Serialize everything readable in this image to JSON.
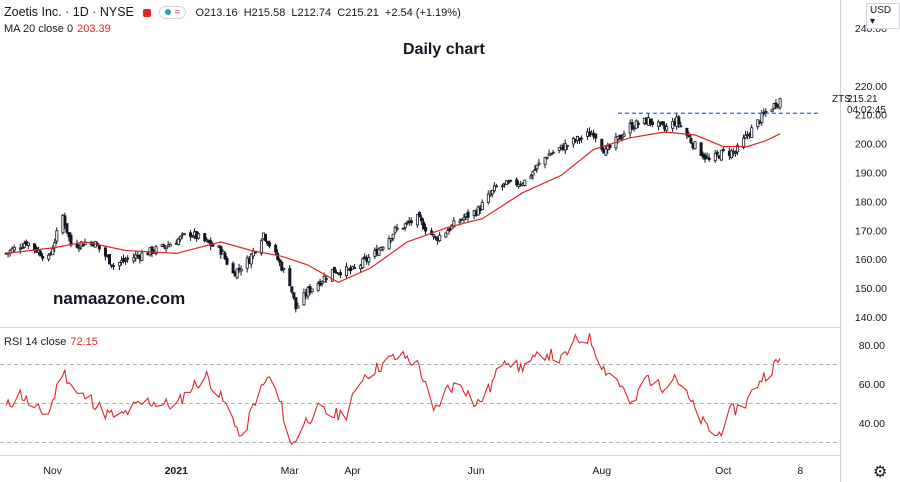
{
  "header": {
    "symbol": "Zoetis Inc. · 1D · NYSE",
    "open_label": "O",
    "open": "213.16",
    "high_label": "H",
    "high": "215.58",
    "low_label": "L",
    "low": "212.74",
    "close_label": "C",
    "close": "215.21",
    "change": "+2.54 (+1.19%)"
  },
  "indicators": {
    "ma_label": "MA 20 close 0",
    "ma_value": "203.39",
    "rsi_label": "RSI 14 close",
    "rsi_value": "72.15"
  },
  "annotations": {
    "title": "Daily chart",
    "watermark": "namaazone.com",
    "ticker_tag": "ZTS"
  },
  "price_scale": {
    "currency": "USD",
    "last_price": "215.21",
    "countdown": "04:02:45"
  },
  "colors": {
    "up": "#131722",
    "down": "#131722",
    "ma": "#e0252b",
    "rsi": "#e0252b",
    "resistance": "#2962ff"
  },
  "chart_data": {
    "type": "candlestick",
    "title": "Daily chart",
    "y_ticks": [
      140,
      150,
      160,
      170,
      180,
      190,
      200,
      210,
      220,
      240
    ],
    "ylim": [
      137,
      252
    ],
    "x_ticks": [
      "Nov",
      "2021",
      "Mar",
      "Apr",
      "Jun",
      "Aug",
      "Oct",
      "8"
    ],
    "close_path": [
      {
        "date": "2020-10-12",
        "v": 162
      },
      {
        "date": "2020-10-22",
        "v": 166
      },
      {
        "date": "2020-11-02",
        "v": 160
      },
      {
        "date": "2020-11-09",
        "v": 175
      },
      {
        "date": "2020-11-13",
        "v": 165
      },
      {
        "date": "2020-11-24",
        "v": 166
      },
      {
        "date": "2020-12-04",
        "v": 158
      },
      {
        "date": "2020-12-15",
        "v": 161
      },
      {
        "date": "2020-12-28",
        "v": 164
      },
      {
        "date": "2021-01-11",
        "v": 169
      },
      {
        "date": "2021-01-26",
        "v": 163
      },
      {
        "date": "2021-02-01",
        "v": 155
      },
      {
        "date": "2021-02-09",
        "v": 160
      },
      {
        "date": "2021-02-16",
        "v": 169
      },
      {
        "date": "2021-02-23",
        "v": 160
      },
      {
        "date": "2021-03-01",
        "v": 152
      },
      {
        "date": "2021-03-04",
        "v": 143
      },
      {
        "date": "2021-03-10",
        "v": 149
      },
      {
        "date": "2021-03-22",
        "v": 156
      },
      {
        "date": "2021-04-01",
        "v": 156
      },
      {
        "date": "2021-04-12",
        "v": 162
      },
      {
        "date": "2021-04-22",
        "v": 170
      },
      {
        "date": "2021-05-03",
        "v": 174
      },
      {
        "date": "2021-05-12",
        "v": 167
      },
      {
        "date": "2021-05-25",
        "v": 174
      },
      {
        "date": "2021-06-02",
        "v": 177
      },
      {
        "date": "2021-06-11",
        "v": 185
      },
      {
        "date": "2021-06-25",
        "v": 187
      },
      {
        "date": "2021-07-06",
        "v": 196
      },
      {
        "date": "2021-07-20",
        "v": 201
      },
      {
        "date": "2021-07-29",
        "v": 204
      },
      {
        "date": "2021-08-04",
        "v": 197
      },
      {
        "date": "2021-08-16",
        "v": 206
      },
      {
        "date": "2021-08-25",
        "v": 208
      },
      {
        "date": "2021-09-02",
        "v": 205
      },
      {
        "date": "2021-09-08",
        "v": 208
      },
      {
        "date": "2021-09-16",
        "v": 200
      },
      {
        "date": "2021-09-24",
        "v": 194
      },
      {
        "date": "2021-10-01",
        "v": 197
      },
      {
        "date": "2021-10-07",
        "v": 197
      },
      {
        "date": "2021-10-13",
        "v": 203
      },
      {
        "date": "2021-10-21",
        "v": 210
      },
      {
        "date": "2021-10-29",
        "v": 215.21
      }
    ],
    "ma20": [
      {
        "date": "2020-10-12",
        "v": 162
      },
      {
        "date": "2020-11-05",
        "v": 164
      },
      {
        "date": "2020-11-20",
        "v": 166
      },
      {
        "date": "2020-12-10",
        "v": 163
      },
      {
        "date": "2021-01-04",
        "v": 162
      },
      {
        "date": "2021-01-26",
        "v": 166
      },
      {
        "date": "2021-02-10",
        "v": 163
      },
      {
        "date": "2021-02-25",
        "v": 161
      },
      {
        "date": "2021-03-10",
        "v": 158
      },
      {
        "date": "2021-03-25",
        "v": 152
      },
      {
        "date": "2021-04-10",
        "v": 157
      },
      {
        "date": "2021-04-28",
        "v": 166
      },
      {
        "date": "2021-05-18",
        "v": 171
      },
      {
        "date": "2021-06-04",
        "v": 174
      },
      {
        "date": "2021-06-24",
        "v": 183
      },
      {
        "date": "2021-07-13",
        "v": 189
      },
      {
        "date": "2021-07-29",
        "v": 198
      },
      {
        "date": "2021-08-16",
        "v": 202
      },
      {
        "date": "2021-09-02",
        "v": 204
      },
      {
        "date": "2021-09-17",
        "v": 203
      },
      {
        "date": "2021-10-01",
        "v": 199
      },
      {
        "date": "2021-10-13",
        "v": 199
      },
      {
        "date": "2021-10-22",
        "v": 201
      },
      {
        "date": "2021-10-29",
        "v": 203.39
      }
    ],
    "resistance": {
      "value": 210.5,
      "from": "2021-08-10",
      "to": "2021-11-15"
    },
    "rsi": {
      "ylim": [
        25,
        87
      ],
      "y_ticks": [
        40,
        60,
        80
      ],
      "levels": [
        70,
        50,
        30
      ],
      "series": [
        {
          "date": "2020-10-12",
          "v": 48
        },
        {
          "date": "2020-10-19",
          "v": 55
        },
        {
          "date": "2020-10-26",
          "v": 47
        },
        {
          "date": "2020-11-02",
          "v": 45
        },
        {
          "date": "2020-11-09",
          "v": 67
        },
        {
          "date": "2020-11-16",
          "v": 55
        },
        {
          "date": "2020-11-23",
          "v": 52
        },
        {
          "date": "2020-11-30",
          "v": 45
        },
        {
          "date": "2020-12-07",
          "v": 43
        },
        {
          "date": "2020-12-14",
          "v": 48
        },
        {
          "date": "2020-12-21",
          "v": 51
        },
        {
          "date": "2021-01-04",
          "v": 49
        },
        {
          "date": "2021-01-11",
          "v": 58
        },
        {
          "date": "2021-01-19",
          "v": 64
        },
        {
          "date": "2021-01-26",
          "v": 53
        },
        {
          "date": "2021-02-02",
          "v": 41
        },
        {
          "date": "2021-02-05",
          "v": 30
        },
        {
          "date": "2021-02-12",
          "v": 52
        },
        {
          "date": "2021-02-19",
          "v": 64
        },
        {
          "date": "2021-02-25",
          "v": 48
        },
        {
          "date": "2021-03-02",
          "v": 28
        },
        {
          "date": "2021-03-08",
          "v": 40
        },
        {
          "date": "2021-03-15",
          "v": 47
        },
        {
          "date": "2021-03-22",
          "v": 44
        },
        {
          "date": "2021-03-29",
          "v": 45
        },
        {
          "date": "2021-04-06",
          "v": 64
        },
        {
          "date": "2021-04-13",
          "v": 68
        },
        {
          "date": "2021-04-20",
          "v": 73
        },
        {
          "date": "2021-04-27",
          "v": 74
        },
        {
          "date": "2021-05-04",
          "v": 69
        },
        {
          "date": "2021-05-11",
          "v": 45
        },
        {
          "date": "2021-05-18",
          "v": 58
        },
        {
          "date": "2021-05-25",
          "v": 60
        },
        {
          "date": "2021-06-01",
          "v": 49
        },
        {
          "date": "2021-06-08",
          "v": 58
        },
        {
          "date": "2021-06-15",
          "v": 74
        },
        {
          "date": "2021-06-22",
          "v": 68
        },
        {
          "date": "2021-06-29",
          "v": 72
        },
        {
          "date": "2021-07-06",
          "v": 76
        },
        {
          "date": "2021-07-13",
          "v": 72
        },
        {
          "date": "2021-07-20",
          "v": 82
        },
        {
          "date": "2021-07-27",
          "v": 84
        },
        {
          "date": "2021-08-03",
          "v": 68
        },
        {
          "date": "2021-08-10",
          "v": 62
        },
        {
          "date": "2021-08-17",
          "v": 48
        },
        {
          "date": "2021-08-24",
          "v": 64
        },
        {
          "date": "2021-08-31",
          "v": 58
        },
        {
          "date": "2021-09-07",
          "v": 65
        },
        {
          "date": "2021-09-14",
          "v": 52
        },
        {
          "date": "2021-09-21",
          "v": 40
        },
        {
          "date": "2021-09-28",
          "v": 33
        },
        {
          "date": "2021-10-05",
          "v": 46
        },
        {
          "date": "2021-10-12",
          "v": 50
        },
        {
          "date": "2021-10-19",
          "v": 62
        },
        {
          "date": "2021-10-25",
          "v": 68
        },
        {
          "date": "2021-10-29",
          "v": 72.15
        }
      ]
    }
  }
}
